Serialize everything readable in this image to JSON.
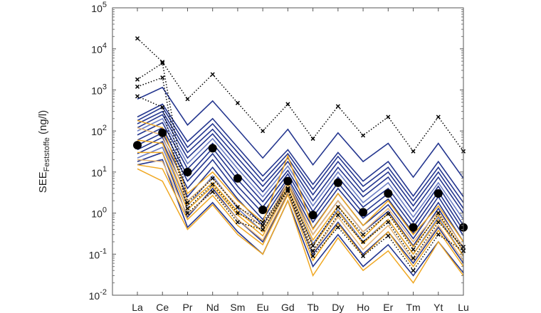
{
  "chart_data": {
    "type": "line",
    "title": "",
    "xlabel": "",
    "ylabel": {
      "main": "SEE",
      "subscript": "Feststoffe",
      "unit": "(ng/l)"
    },
    "yscale": "log",
    "ylim": [
      0.01,
      100000
    ],
    "ytick_labels": [
      {
        "base": "10",
        "exp": "-2"
      },
      {
        "base": "10",
        "exp": "-1"
      },
      {
        "base": "10",
        "exp": "0"
      },
      {
        "base": "10",
        "exp": "1"
      },
      {
        "base": "10",
        "exp": "2"
      },
      {
        "base": "10",
        "exp": "3"
      },
      {
        "base": "10",
        "exp": "4"
      },
      {
        "base": "10",
        "exp": "5"
      }
    ],
    "categories": [
      "La",
      "Ce",
      "Pr",
      "Nd",
      "Sm",
      "Eu",
      "Gd",
      "Tb",
      "Dy",
      "Ho",
      "Er",
      "Tm",
      "Yt",
      "Lu"
    ],
    "grid": false,
    "legend": "none",
    "colors": {
      "blue": "#24368f",
      "blue_light": "#6d7fc4",
      "orange": "#f0a823",
      "orange_light": "#e9b878",
      "black": "#000000"
    },
    "series": [
      {
        "group": "blue",
        "values": [
          600,
          1150,
          140,
          540,
          110,
          22,
          110,
          15,
          90,
          18,
          50,
          7.5,
          50,
          7
        ]
      },
      {
        "group": "blue",
        "values": [
          220,
          450,
          55,
          200,
          40,
          8,
          35,
          5,
          30,
          6,
          18,
          2.6,
          18,
          2.5
        ]
      },
      {
        "group": "blue",
        "values": [
          180,
          380,
          40,
          150,
          30,
          6,
          28,
          3.8,
          24,
          4.5,
          13,
          2,
          13,
          1.8
        ]
      },
      {
        "group": "blue",
        "values": [
          150,
          300,
          30,
          110,
          22,
          4.5,
          22,
          2.8,
          18,
          3.3,
          10,
          1.5,
          10,
          1.3
        ]
      },
      {
        "group": "blue",
        "values": [
          120,
          250,
          22,
          85,
          16,
          3.3,
          18,
          2,
          13,
          2.5,
          7.5,
          1.1,
          7.5,
          1
        ]
      },
      {
        "group": "blue",
        "values": [
          100,
          200,
          16,
          65,
          12,
          2.5,
          14,
          1.5,
          10,
          1.8,
          5.5,
          0.8,
          5.5,
          0.7
        ]
      },
      {
        "group": "blue",
        "values": [
          80,
          160,
          12,
          50,
          9,
          1.9,
          11,
          1.1,
          7.5,
          1.4,
          4,
          0.6,
          4.5,
          0.5
        ]
      },
      {
        "group": "blue",
        "values": [
          60,
          120,
          8,
          38,
          6.5,
          1.4,
          9,
          0.8,
          5.5,
          1,
          3,
          0.45,
          3.3,
          0.38
        ]
      },
      {
        "group": "blue",
        "values": [
          45,
          90,
          6,
          28,
          4.5,
          1,
          7,
          0.6,
          4,
          0.75,
          2.2,
          0.33,
          2.5,
          0.28
        ]
      },
      {
        "group": "blue",
        "values": [
          35,
          70,
          4,
          20,
          3.2,
          0.7,
          6,
          0.42,
          3,
          0.5,
          1.6,
          0.24,
          1.8,
          0.2
        ]
      },
      {
        "group": "blue",
        "values": [
          28,
          55,
          2.5,
          13,
          2.2,
          0.5,
          5,
          0.3,
          2,
          0.35,
          1.1,
          0.16,
          1.3,
          0.14
        ]
      },
      {
        "group": "blue",
        "values": [
          22,
          40,
          1.5,
          8,
          1.3,
          0.35,
          4,
          0.18,
          1.2,
          0.2,
          0.7,
          0.1,
          0.8,
          0.09
        ]
      },
      {
        "group": "blue",
        "values": [
          18,
          30,
          0.8,
          4,
          0.7,
          0.2,
          3,
          0.1,
          0.6,
          0.1,
          0.35,
          0.06,
          0.45,
          0.06
        ]
      },
      {
        "group": "blue",
        "values": [
          15,
          20,
          0.45,
          1.8,
          0.35,
          0.1,
          2,
          0.05,
          0.3,
          0.05,
          0.17,
          0.03,
          0.2,
          0.035
        ]
      },
      {
        "group": "orange",
        "values": [
          180,
          120,
          3,
          10,
          2,
          0.6,
          25,
          0.4,
          3,
          0.5,
          2,
          0.3,
          1.5,
          0.2
        ]
      },
      {
        "group": "orange",
        "values": [
          120,
          80,
          2,
          7,
          1.5,
          0.45,
          6,
          0.3,
          2,
          0.35,
          1.3,
          0.2,
          1.1,
          0.15
        ]
      },
      {
        "group": "orange",
        "values": [
          60,
          50,
          1.6,
          5.5,
          1.1,
          0.35,
          5,
          0.22,
          1.5,
          0.25,
          1,
          0.15,
          0.9,
          0.12
        ]
      },
      {
        "group": "orange",
        "values": [
          30,
          30,
          1.2,
          4.5,
          0.9,
          0.28,
          4,
          0.16,
          1.1,
          0.18,
          0.7,
          0.1,
          0.7,
          0.09
        ]
      },
      {
        "group": "orange",
        "values": [
          20,
          18,
          0.9,
          3.5,
          0.7,
          0.22,
          3.3,
          0.11,
          0.8,
          0.13,
          0.5,
          0.07,
          0.5,
          0.07
        ]
      },
      {
        "group": "orange",
        "values": [
          15,
          12,
          0.7,
          2.7,
          0.5,
          0.17,
          2.8,
          0.07,
          0.55,
          0.09,
          0.35,
          0.05,
          0.38,
          0.05
        ]
      },
      {
        "group": "orange",
        "values": [
          12,
          6,
          0.4,
          1.6,
          0.3,
          0.1,
          2,
          0.03,
          0.25,
          0.04,
          0.12,
          0.02,
          0.2,
          0.03
        ]
      },
      {
        "group": "dotted",
        "values": [
          18000,
          4800,
          600,
          2400,
          480,
          100,
          450,
          65,
          400,
          78,
          220,
          32,
          220,
          32
        ]
      },
      {
        "group": "dotted",
        "values": [
          1800,
          4500,
          1.8,
          7,
          1.4,
          0.6,
          4,
          0.16,
          1.4,
          0.3,
          0.95,
          0.13,
          1,
          0.12
        ]
      },
      {
        "group": "dotted",
        "values": [
          1200,
          2000,
          1,
          3.3,
          0.6,
          0.4,
          3.5,
          0.09,
          0.45,
          0.09,
          0.28,
          0.04,
          0.3,
          0.12
        ]
      },
      {
        "group": "dotted",
        "values": [
          700,
          380,
          1.3,
          5,
          1,
          0.5,
          3.8,
          0.12,
          0.9,
          0.2,
          0.6,
          0.08,
          0.6,
          0.15
        ]
      },
      {
        "group": "mean",
        "values": [
          45,
          90,
          10,
          38,
          7,
          1.2,
          6,
          0.9,
          5.5,
          1.05,
          3,
          0.45,
          3,
          0.45
        ]
      }
    ]
  }
}
